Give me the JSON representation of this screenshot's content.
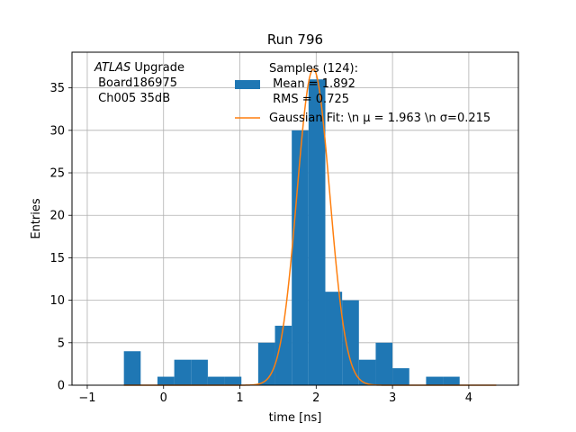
{
  "chart_data": {
    "type": "bar",
    "title": "Run 796",
    "xlabel": "time [ns]",
    "ylabel": "Entries",
    "xlim": [
      -1.2,
      4.65
    ],
    "ylim": [
      0,
      39.2
    ],
    "grid": true,
    "xticks": [
      -1,
      0,
      1,
      2,
      3,
      4
    ],
    "yticks": [
      0,
      5,
      10,
      15,
      20,
      25,
      30,
      35
    ],
    "bin_edges": [
      -0.52,
      -0.3,
      -0.08,
      0.14,
      0.36,
      0.58,
      0.8,
      1.02,
      1.24,
      1.46,
      1.68,
      1.9,
      2.12,
      2.34,
      2.56,
      2.78,
      3.0,
      3.22,
      3.44,
      3.66,
      3.88
    ],
    "counts": [
      4,
      0,
      1,
      3,
      3,
      1,
      1,
      0,
      5,
      7,
      30,
      36,
      11,
      10,
      3,
      5,
      2,
      0,
      1,
      1
    ],
    "bar_color": "#1f77b4",
    "fit": {
      "mu": 1.963,
      "sigma": 0.215,
      "amplitude": 37.2,
      "x_range": [
        -0.52,
        4.36
      ],
      "color": "#ff7f0e"
    },
    "annotation": {
      "line1_italic": "ATLAS",
      "line1_rest": " Upgrade",
      "line2": " Board186975",
      "line3": " Ch005 35dB"
    },
    "legend": {
      "position": "top-right",
      "hist_label_lines": [
        "Samples (124):",
        " Mean = 1.892",
        " RMS = 0.725"
      ],
      "fit_label": "Gaussian Fit: \\n μ = 1.963 \\n σ=0.215"
    }
  }
}
